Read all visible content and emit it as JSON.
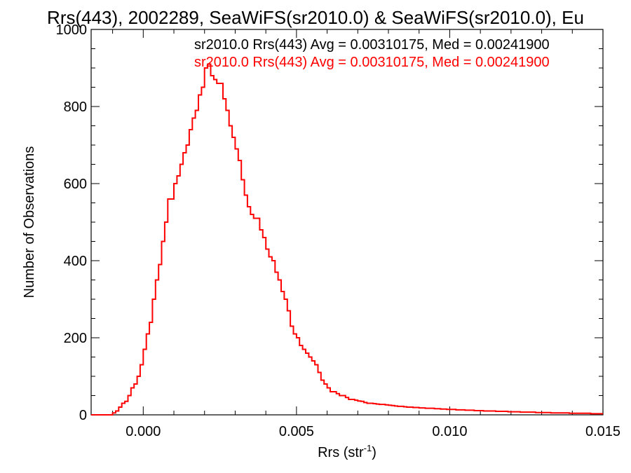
{
  "chart_data": {
    "type": "histogram",
    "title": "Rrs(443), 2002289, SeaWiFS(sr2010.0) & SeaWiFS(sr2010.0), Eu",
    "xlabel": "Rrs (str",
    "xlabel_sup": "-1",
    "xlabel_end": ")",
    "ylabel": "Number of Observations",
    "xlim": [
      -0.0017,
      0.015
    ],
    "ylim": [
      0,
      1000
    ],
    "xticks": [
      0.0,
      0.005,
      0.01,
      0.015
    ],
    "xtick_labels": [
      "0.000",
      "0.005",
      "0.010",
      "0.015"
    ],
    "yticks": [
      0,
      200,
      400,
      600,
      800,
      1000
    ],
    "ytick_labels": [
      "0",
      "200",
      "400",
      "600",
      "800",
      "1000"
    ],
    "grid": false,
    "annotations": [
      {
        "text": "sr2010.0 Rrs(443) Avg = 0.00310175, Med = 0.00241900",
        "color": "#000000"
      },
      {
        "text": "sr2010.0 Rrs(443) Avg = 0.00310175, Med = 0.00241900",
        "color": "#ff0000"
      }
    ],
    "series": [
      {
        "color": "#ff0000",
        "x_start": -0.0017,
        "bin_width": 0.0001,
        "values": [
          0,
          0,
          0,
          0,
          0,
          0,
          0,
          5,
          10,
          20,
          30,
          35,
          50,
          70,
          80,
          100,
          130,
          170,
          210,
          240,
          300,
          350,
          390,
          450,
          500,
          560,
          560,
          600,
          620,
          650,
          680,
          700,
          740,
          770,
          790,
          830,
          850,
          900,
          910,
          880,
          870,
          860,
          860,
          820,
          790,
          750,
          720,
          690,
          660,
          610,
          570,
          540,
          520,
          510,
          510,
          480,
          460,
          430,
          410,
          400,
          370,
          350,
          320,
          300,
          270,
          230,
          210,
          200,
          180,
          170,
          160,
          150,
          140,
          130,
          110,
          90,
          80,
          70,
          60,
          60,
          55,
          50,
          50,
          45,
          40,
          40,
          38,
          36,
          35,
          32,
          30,
          30,
          29,
          28,
          27,
          27,
          26,
          25,
          24,
          23,
          22,
          22,
          21,
          20,
          20,
          19,
          19,
          18,
          18,
          17,
          17,
          17,
          16,
          16,
          15,
          15,
          14,
          14,
          14,
          13,
          13,
          13,
          12,
          12,
          12,
          11,
          11,
          11,
          10,
          10,
          10,
          10,
          9,
          9,
          9,
          9,
          8,
          8,
          8,
          8,
          7,
          7,
          7,
          7,
          7,
          6,
          6,
          6,
          6,
          6,
          5,
          5,
          5,
          5,
          5,
          5,
          4,
          4,
          4,
          4,
          4,
          4,
          4,
          3,
          3,
          3,
          3,
          3
        ]
      }
    ]
  }
}
